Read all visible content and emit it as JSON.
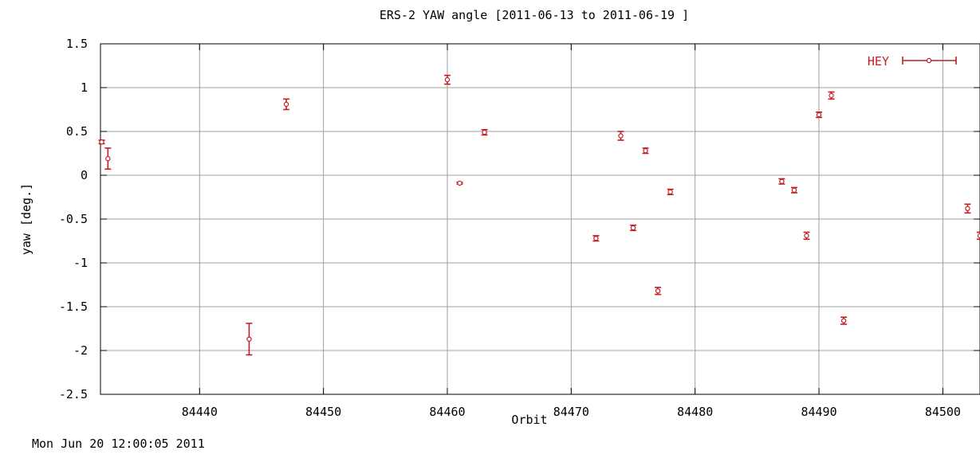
{
  "footer": {
    "timestamp": "Mon Jun 20 12:00:05 2011"
  },
  "chart_data": {
    "type": "scatter",
    "title": "ERS-2 YAW angle [2011-06-13 to 2011-06-19 ]",
    "xlabel": "Orbit",
    "ylabel": "yaw [deg.]",
    "xlim": [
      84432,
      84503
    ],
    "ylim": [
      -2.5,
      1.5
    ],
    "xticks": [
      84440,
      84450,
      84460,
      84470,
      84480,
      84490,
      84500
    ],
    "yticks": [
      1.5,
      1,
      0.5,
      0,
      -0.5,
      -1,
      -1.5,
      -2,
      -2.5
    ],
    "ytick_labels": [
      "1.5",
      "1",
      "0.5",
      "0",
      "-0.5",
      "-1",
      "-1.5",
      "-2",
      "-2.5"
    ],
    "grid": true,
    "legend": "top-right",
    "series": [
      {
        "name": "HEY",
        "color": "#c41e24",
        "points": [
          {
            "x": 84432.1,
            "y": 0.38,
            "err": 0.02
          },
          {
            "x": 84432.6,
            "y": 0.19,
            "err": 0.12
          },
          {
            "x": 84444,
            "y": -1.87,
            "err": 0.18
          },
          {
            "x": 84447,
            "y": 0.81,
            "err": 0.06
          },
          {
            "x": 84460,
            "y": 1.09,
            "err": 0.05
          },
          {
            "x": 84461,
            "y": -0.09,
            "err": 0.01
          },
          {
            "x": 84463,
            "y": 0.49,
            "err": 0.03
          },
          {
            "x": 84472,
            "y": -0.72,
            "err": 0.03
          },
          {
            "x": 84474,
            "y": 0.45,
            "err": 0.05
          },
          {
            "x": 84475,
            "y": -0.6,
            "err": 0.03
          },
          {
            "x": 84476,
            "y": 0.28,
            "err": 0.03
          },
          {
            "x": 84477,
            "y": -1.32,
            "err": 0.04
          },
          {
            "x": 84478,
            "y": -0.19,
            "err": 0.03
          },
          {
            "x": 84487,
            "y": -0.07,
            "err": 0.03
          },
          {
            "x": 84488,
            "y": -0.17,
            "err": 0.03
          },
          {
            "x": 84489,
            "y": -0.69,
            "err": 0.04
          },
          {
            "x": 84490,
            "y": 0.69,
            "err": 0.03
          },
          {
            "x": 84491,
            "y": 0.91,
            "err": 0.04
          },
          {
            "x": 84492,
            "y": -1.66,
            "err": 0.04
          },
          {
            "x": 84502,
            "y": -0.38,
            "err": 0.05
          },
          {
            "x": 84503,
            "y": -0.69,
            "err": 0.04
          }
        ]
      }
    ]
  }
}
